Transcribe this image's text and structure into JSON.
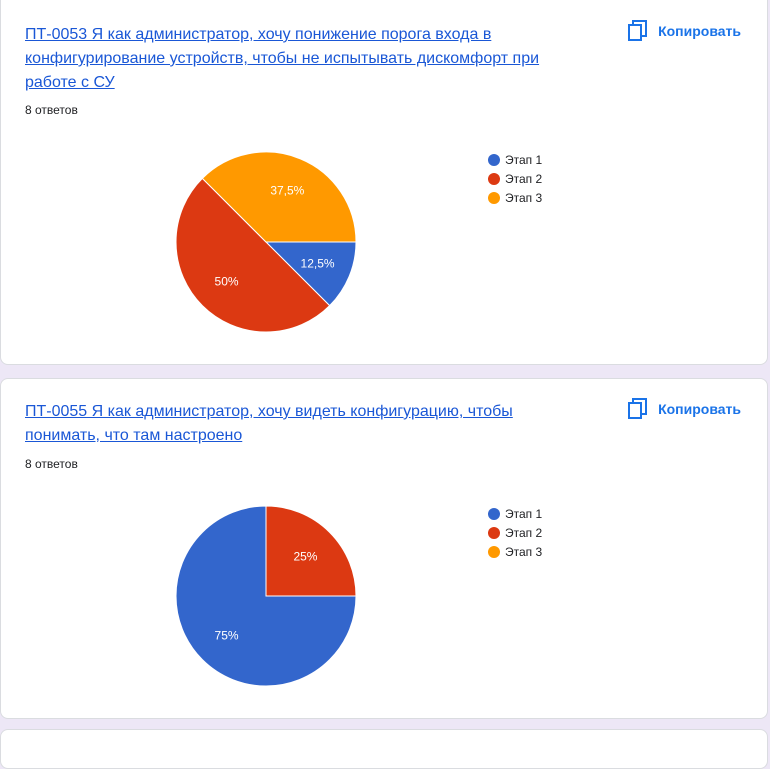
{
  "colors": {
    "etap1": "#3366cc",
    "etap2": "#dc3912",
    "etap3": "#ff9900",
    "link": "#1a57d6",
    "button": "#1a73e8"
  },
  "copy_label": "Копировать",
  "icons": {
    "copy": "copy-icon"
  },
  "questions": [
    {
      "title": "ПТ-0053 Я как администратор, хочу понижение порога входа в конфигурирование устройств, чтобы не испытывать дискомфорт при работе с СУ",
      "responses": "8 ответов"
    },
    {
      "title": "ПТ-0055 Я как администратор, хочу видеть конфигурацию, чтобы понимать, что там настроено",
      "responses": "8 ответов"
    }
  ],
  "chart_data": [
    {
      "type": "pie",
      "categories": [
        "Этап 1",
        "Этап 2",
        "Этап 3"
      ],
      "values": [
        12.5,
        50,
        37.5
      ],
      "labels": [
        "12,5%",
        "50%",
        "37,5%"
      ],
      "legend_position": "right"
    },
    {
      "type": "pie",
      "categories": [
        "Этап 1",
        "Этап 2",
        "Этап 3"
      ],
      "values": [
        75,
        25,
        0
      ],
      "labels": [
        "75%",
        "25%",
        ""
      ],
      "legend_position": "right"
    }
  ]
}
